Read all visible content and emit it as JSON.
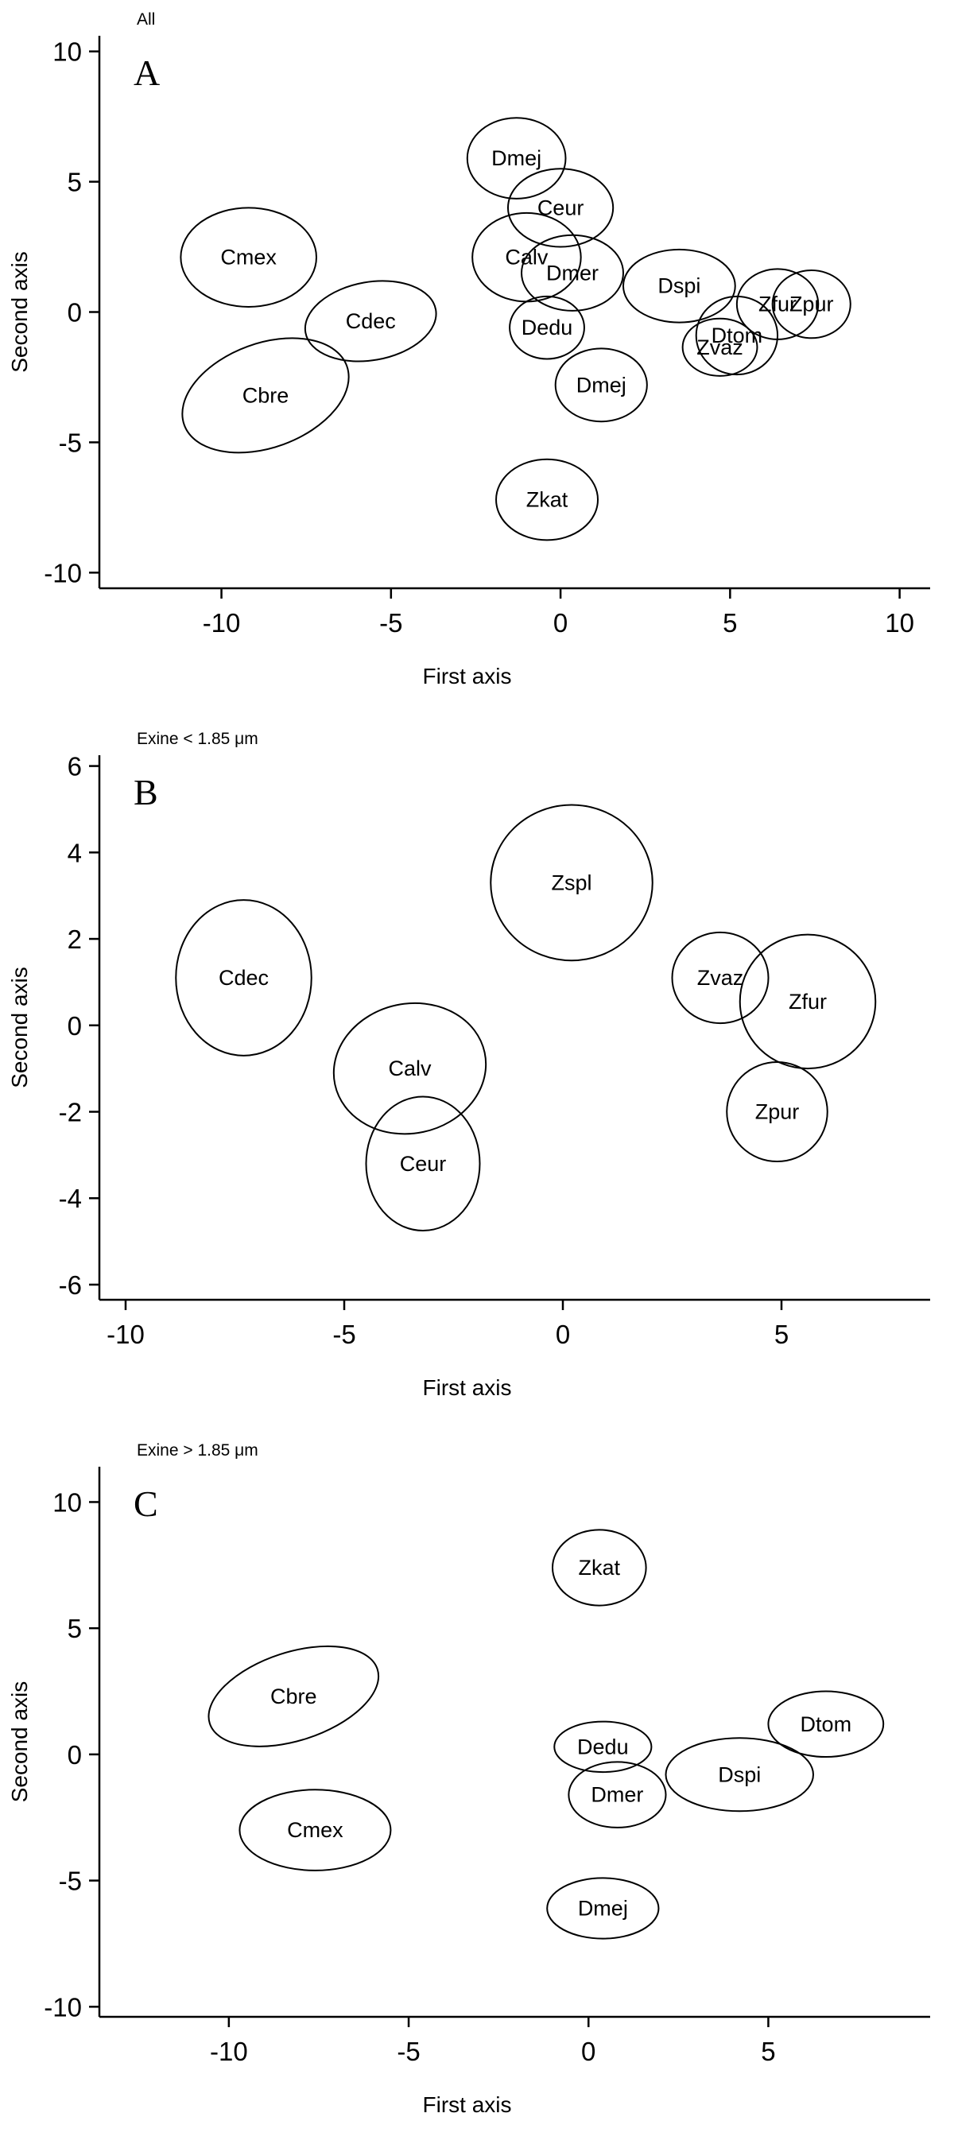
{
  "figure": {
    "background": "#ffffff",
    "axis_color": "#000000",
    "ellipse_stroke": "#000000",
    "ellipse_fill": "none"
  },
  "chart_data": [
    {
      "type": "scatter-ellipse",
      "panel_label": "A",
      "title": "All",
      "xlabel": "First axis",
      "ylabel": "Second axis",
      "xlim": [
        -13.6,
        10.9
      ],
      "ylim": [
        -10.6,
        10.6
      ],
      "xticks": [
        -10,
        -5,
        0,
        5,
        10
      ],
      "yticks": [
        -10,
        -5,
        0,
        5,
        10
      ],
      "grid": false,
      "groups": [
        {
          "label": "Cmex",
          "x": -9.2,
          "y": 2.1,
          "rx": 2.0,
          "ry": 1.9,
          "rot": 0
        },
        {
          "label": "Cdec",
          "x": -5.6,
          "y": -0.35,
          "rx": 1.95,
          "ry": 1.5,
          "rot": -10
        },
        {
          "label": "Cbre",
          "x": -8.7,
          "y": -3.2,
          "rx": 2.55,
          "ry": 2.0,
          "rot": -20
        },
        {
          "label": "Dmej",
          "x": -1.3,
          "y": 5.9,
          "rx": 1.45,
          "ry": 1.55,
          "rot": 0
        },
        {
          "label": "Ceur",
          "x": 0.0,
          "y": 4.0,
          "rx": 1.55,
          "ry": 1.5,
          "rot": 0
        },
        {
          "label": "Calv",
          "x": -1.0,
          "y": 2.1,
          "rx": 1.6,
          "ry": 1.7,
          "rot": 0
        },
        {
          "label": "Dmer",
          "x": 0.35,
          "y": 1.5,
          "rx": 1.5,
          "ry": 1.45,
          "rot": 0
        },
        {
          "label": "Dedu",
          "x": -0.4,
          "y": -0.6,
          "rx": 1.1,
          "ry": 1.2,
          "rot": 0
        },
        {
          "label": "Dspi",
          "x": 3.5,
          "y": 1.0,
          "rx": 1.65,
          "ry": 1.4,
          "rot": 0
        },
        {
          "label": "Zfur",
          "x": 6.4,
          "y": 0.3,
          "rx": 1.2,
          "ry": 1.35,
          "rot": 0
        },
        {
          "label": "Zpur",
          "x": 7.4,
          "y": 0.3,
          "rx": 1.15,
          "ry": 1.3,
          "rot": 0
        },
        {
          "label": "Dtom",
          "x": 5.2,
          "y": -0.9,
          "rx": 1.2,
          "ry": 1.5,
          "rot": 0
        },
        {
          "label": "Zvaz",
          "x": 4.7,
          "y": -1.35,
          "rx": 1.1,
          "ry": 1.1,
          "rot": 0
        },
        {
          "label": "Dmej",
          "x": 1.2,
          "y": -2.8,
          "rx": 1.35,
          "ry": 1.4,
          "rot": 0
        },
        {
          "label": "Zkat",
          "x": -0.4,
          "y": -7.2,
          "rx": 1.5,
          "ry": 1.55,
          "rot": 0
        }
      ]
    },
    {
      "type": "scatter-ellipse",
      "panel_label": "B",
      "title": "Exine < 1.85 μm",
      "xlabel": "First axis",
      "ylabel": "Second axis",
      "xlim": [
        -10.6,
        8.4
      ],
      "ylim": [
        -6.35,
        6.25
      ],
      "xticks": [
        -10,
        -5,
        0,
        5
      ],
      "yticks": [
        -6,
        -4,
        -2,
        0,
        2,
        4,
        6
      ],
      "grid": false,
      "groups": [
        {
          "label": "Zspl",
          "x": 0.2,
          "y": 3.3,
          "rx": 1.85,
          "ry": 1.8,
          "rot": 0
        },
        {
          "label": "Cdec",
          "x": -7.3,
          "y": 1.1,
          "rx": 1.55,
          "ry": 1.8,
          "rot": 0
        },
        {
          "label": "Calv",
          "x": -3.5,
          "y": -1.0,
          "rx": 1.75,
          "ry": 1.5,
          "rot": -12
        },
        {
          "label": "Ceur",
          "x": -3.2,
          "y": -3.2,
          "rx": 1.3,
          "ry": 1.55,
          "rot": 0
        },
        {
          "label": "Zvaz",
          "x": 3.6,
          "y": 1.1,
          "rx": 1.1,
          "ry": 1.05,
          "rot": 0
        },
        {
          "label": "Zfur",
          "x": 5.6,
          "y": 0.55,
          "rx": 1.55,
          "ry": 1.55,
          "rot": 0
        },
        {
          "label": "Zpur",
          "x": 4.9,
          "y": -2.0,
          "rx": 1.15,
          "ry": 1.15,
          "rot": 0
        }
      ]
    },
    {
      "type": "scatter-ellipse",
      "panel_label": "C",
      "title": "Exine >  1.85 μm",
      "xlabel": "First axis",
      "ylabel": "Second axis",
      "xlim": [
        -13.6,
        9.5
      ],
      "ylim": [
        -10.4,
        11.4
      ],
      "xticks": [
        -10,
        -5,
        0,
        5
      ],
      "yticks": [
        -10,
        -5,
        0,
        5,
        10
      ],
      "grid": false,
      "groups": [
        {
          "label": "Zkat",
          "x": 0.3,
          "y": 7.4,
          "rx": 1.3,
          "ry": 1.5,
          "rot": 0
        },
        {
          "label": "Cbre",
          "x": -8.2,
          "y": 2.3,
          "rx": 2.45,
          "ry": 1.75,
          "rot": -18
        },
        {
          "label": "Cmex",
          "x": -7.6,
          "y": -3.0,
          "rx": 2.1,
          "ry": 1.6,
          "rot": 0
        },
        {
          "label": "Dedu",
          "x": 0.4,
          "y": 0.3,
          "rx": 1.35,
          "ry": 1.0,
          "rot": 0
        },
        {
          "label": "Dmer",
          "x": 0.8,
          "y": -1.6,
          "rx": 1.35,
          "ry": 1.3,
          "rot": 0
        },
        {
          "label": "Dspi",
          "x": 4.2,
          "y": -0.8,
          "rx": 2.05,
          "ry": 1.45,
          "rot": 0
        },
        {
          "label": "Dtom",
          "x": 6.6,
          "y": 1.2,
          "rx": 1.6,
          "ry": 1.3,
          "rot": 0
        },
        {
          "label": "Dmej",
          "x": 0.4,
          "y": -6.1,
          "rx": 1.55,
          "ry": 1.2,
          "rot": 0
        }
      ]
    }
  ]
}
